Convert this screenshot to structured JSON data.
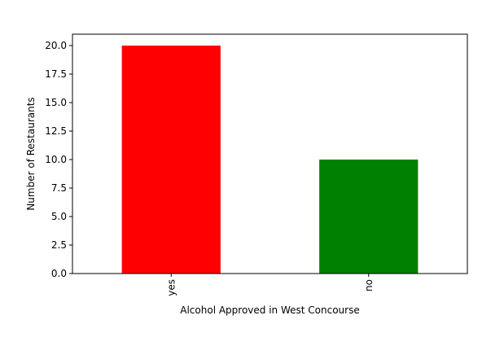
{
  "chart_data": {
    "type": "bar",
    "categories": [
      "yes",
      "no"
    ],
    "values": [
      20,
      10
    ],
    "colors": [
      "#ff0000",
      "#008000"
    ],
    "title": "",
    "xlabel": "Alcohol Approved in West Concourse",
    "ylabel": "Number of Restaurants",
    "ylim": [
      0,
      21
    ],
    "yticks": [
      0.0,
      2.5,
      5.0,
      7.5,
      10.0,
      12.5,
      15.0,
      17.5,
      20.0
    ],
    "ytick_labels": [
      "0.0",
      "2.5",
      "5.0",
      "7.5",
      "10.0",
      "12.5",
      "15.0",
      "17.5",
      "20.0"
    ],
    "xtick_rotation": "vertical",
    "grid": false,
    "legend": "none"
  }
}
